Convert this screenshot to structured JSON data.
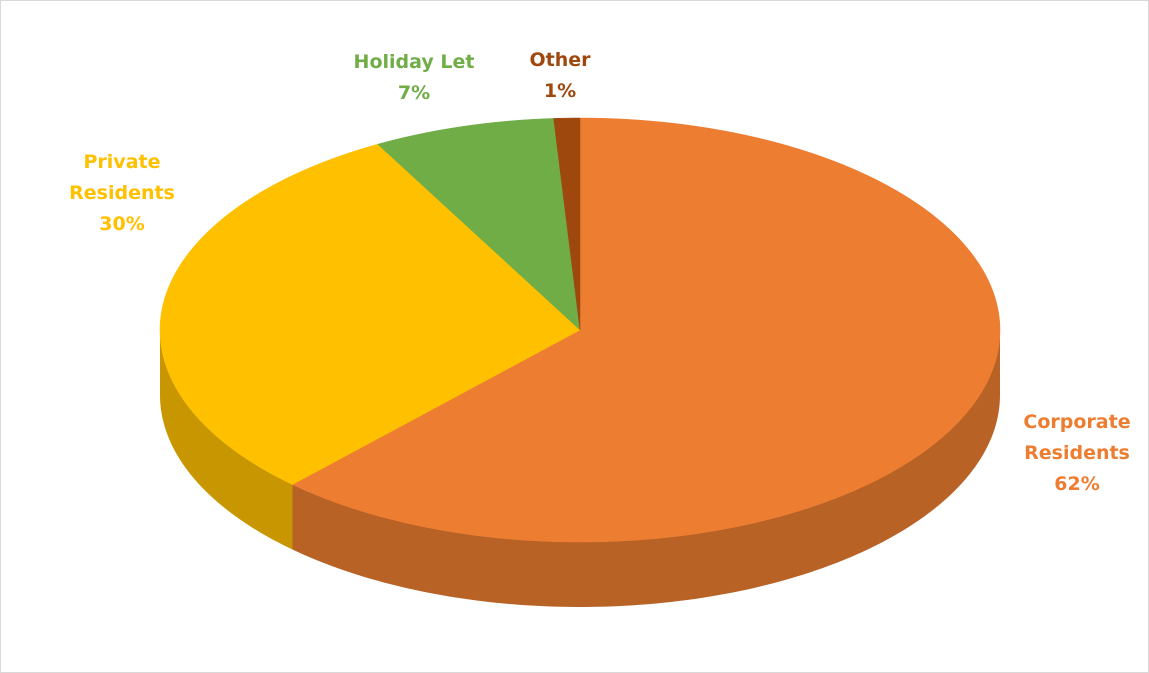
{
  "chart_data": {
    "type": "pie",
    "categories": [
      "Corporate Residents",
      "Private Residents",
      "Holiday Let",
      "Other"
    ],
    "values": [
      62,
      30,
      7,
      1
    ],
    "value_labels": [
      "62%",
      "30%",
      "7%",
      "1%"
    ],
    "colors": [
      "#ED7D31",
      "#FFC000",
      "#70AD47",
      "#9E480E"
    ]
  }
}
